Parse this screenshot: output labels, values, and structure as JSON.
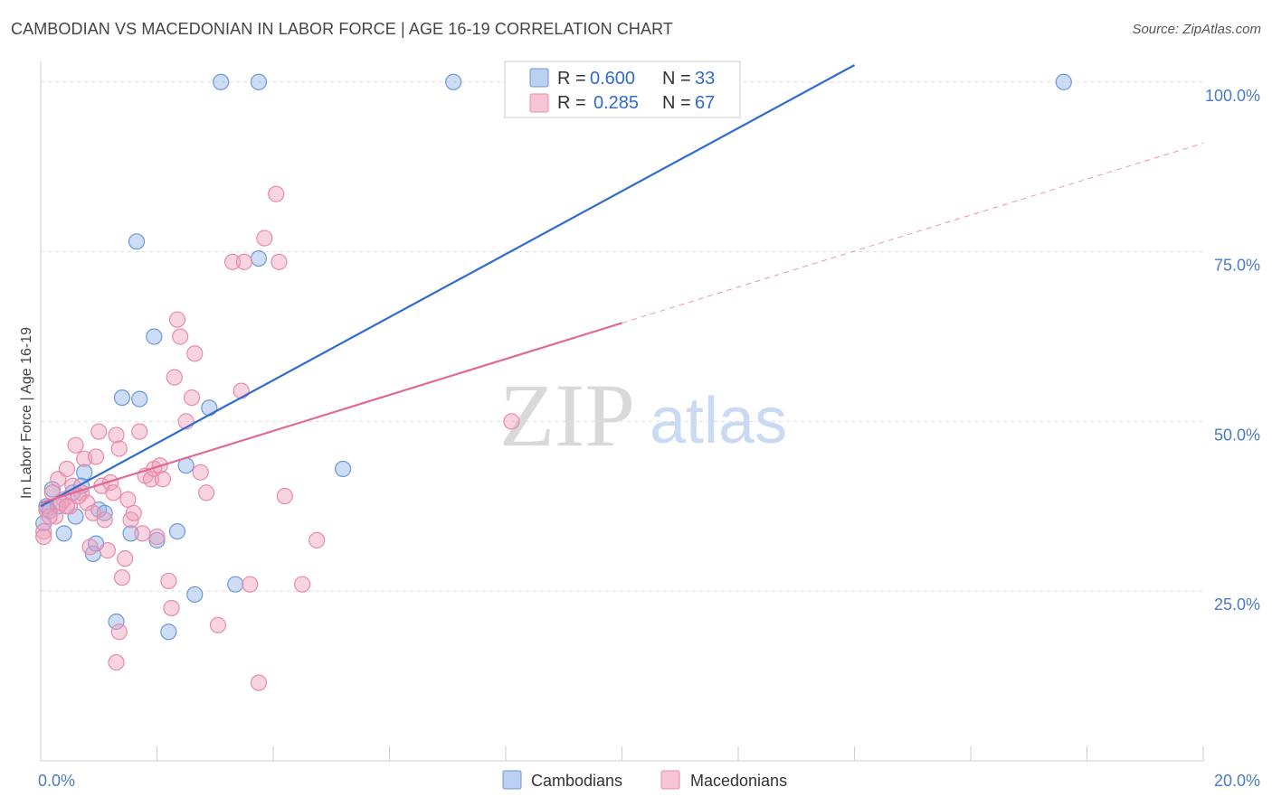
{
  "header": {
    "title": "CAMBODIAN VS MACEDONIAN IN LABOR FORCE | AGE 16-19 CORRELATION CHART",
    "source": "Source: ZipAtlas.com"
  },
  "watermark": {
    "part1": "ZIP",
    "part2": "atlas"
  },
  "legend": {
    "rows": [
      {
        "r_label": "R = ",
        "r_value": "0.600",
        "n_label": "N = ",
        "n_value": "33",
        "color": "#8fb3e8"
      },
      {
        "r_label": "R = ",
        "r_value": "0.285",
        "n_label": "N = ",
        "n_value": "67",
        "color": "#f0a0bb"
      }
    ]
  },
  "bottom_legend": {
    "items": [
      {
        "label": "Cambodians",
        "color": "#8fb3e8"
      },
      {
        "label": "Macedonians",
        "color": "#f0a0bb"
      }
    ]
  },
  "chart_data": {
    "type": "scatter",
    "title": "CAMBODIAN VS MACEDONIAN IN LABOR FORCE | AGE 16-19 CORRELATION CHART",
    "xlabel": "",
    "ylabel": "In Labor Force | Age 16-19",
    "xlim": [
      0,
      20
    ],
    "ylim": [
      0,
      102.5
    ],
    "x_tick_labels": [
      {
        "value": 0,
        "label": "0.0%"
      },
      {
        "value": 20,
        "label": "20.0%"
      }
    ],
    "y_tick_labels": [
      {
        "value": 25,
        "label": "25.0%"
      },
      {
        "value": 50,
        "label": "50.0%"
      },
      {
        "value": 75,
        "label": "75.0%"
      },
      {
        "value": 100,
        "label": "100.0%"
      }
    ],
    "x_minor_ticks": [
      2,
      4,
      6,
      8,
      10,
      12,
      14,
      16,
      18,
      20
    ],
    "legend_position": "top-center",
    "series": [
      {
        "name": "Cambodians",
        "color": "#8fb3e8",
        "stroke": "#6d98d8",
        "trend": {
          "x0": 0,
          "y0": 37.5,
          "x1": 14,
          "y1": 102.5,
          "color": "#2f6bd1",
          "dashed_to": null
        },
        "points": [
          [
            0.05,
            35.0
          ],
          [
            0.1,
            37.5
          ],
          [
            0.15,
            36.8
          ],
          [
            0.3,
            37.5
          ],
          [
            0.4,
            33.5
          ],
          [
            0.55,
            39.5
          ],
          [
            0.6,
            36.0
          ],
          [
            0.75,
            42.5
          ],
          [
            0.7,
            40.5
          ],
          [
            0.9,
            30.5
          ],
          [
            0.95,
            32.0
          ],
          [
            1.0,
            37.0
          ],
          [
            1.1,
            36.5
          ],
          [
            1.3,
            20.5
          ],
          [
            1.4,
            53.5
          ],
          [
            1.55,
            33.5
          ],
          [
            1.65,
            76.5
          ],
          [
            1.7,
            53.3
          ],
          [
            1.95,
            62.5
          ],
          [
            2.0,
            32.5
          ],
          [
            2.35,
            33.8
          ],
          [
            2.5,
            43.5
          ],
          [
            2.65,
            24.5
          ],
          [
            2.9,
            52.0
          ],
          [
            2.2,
            19.0
          ],
          [
            3.1,
            100.0
          ],
          [
            3.75,
            100.0
          ],
          [
            3.35,
            26.0
          ],
          [
            3.75,
            74.0
          ],
          [
            5.2,
            43.0
          ],
          [
            7.1,
            100.0
          ],
          [
            17.6,
            100.0
          ],
          [
            0.2,
            40.0
          ]
        ]
      },
      {
        "name": "Macedonians",
        "color": "#f0a0bb",
        "stroke": "#e88aab",
        "trend": {
          "x0": 0,
          "y0": 38.0,
          "x1": 10.0,
          "y1": 64.5,
          "color": "#e06a94",
          "dashed_to": {
            "x": 20,
            "y": 91.0
          }
        },
        "points": [
          [
            0.05,
            33.8
          ],
          [
            0.1,
            37.0
          ],
          [
            0.2,
            39.5
          ],
          [
            0.25,
            36.0
          ],
          [
            0.3,
            41.5
          ],
          [
            0.4,
            38.5
          ],
          [
            0.45,
            43.0
          ],
          [
            0.5,
            37.5
          ],
          [
            0.55,
            40.5
          ],
          [
            0.6,
            46.5
          ],
          [
            0.7,
            39.5
          ],
          [
            0.75,
            44.5
          ],
          [
            0.8,
            38.0
          ],
          [
            0.85,
            31.5
          ],
          [
            0.9,
            36.5
          ],
          [
            0.95,
            44.8
          ],
          [
            1.0,
            48.5
          ],
          [
            1.05,
            40.5
          ],
          [
            1.1,
            35.5
          ],
          [
            1.15,
            31.0
          ],
          [
            1.2,
            41.0
          ],
          [
            1.25,
            39.5
          ],
          [
            1.3,
            48.0
          ],
          [
            1.35,
            46.0
          ],
          [
            1.4,
            27.0
          ],
          [
            1.45,
            29.8
          ],
          [
            1.5,
            38.5
          ],
          [
            1.55,
            35.5
          ],
          [
            1.6,
            36.5
          ],
          [
            1.7,
            48.5
          ],
          [
            1.75,
            33.5
          ],
          [
            1.8,
            42.0
          ],
          [
            1.9,
            41.5
          ],
          [
            1.95,
            43.0
          ],
          [
            2.0,
            33.0
          ],
          [
            2.05,
            43.5
          ],
          [
            2.1,
            41.5
          ],
          [
            2.2,
            26.5
          ],
          [
            2.25,
            22.5
          ],
          [
            2.3,
            56.5
          ],
          [
            2.35,
            65.0
          ],
          [
            2.4,
            62.5
          ],
          [
            2.5,
            50.0
          ],
          [
            2.6,
            53.5
          ],
          [
            2.65,
            60.0
          ],
          [
            2.75,
            42.5
          ],
          [
            2.85,
            39.5
          ],
          [
            3.05,
            20.0
          ],
          [
            3.3,
            73.5
          ],
          [
            3.45,
            54.5
          ],
          [
            3.5,
            73.5
          ],
          [
            3.6,
            26.0
          ],
          [
            3.75,
            11.5
          ],
          [
            3.85,
            77.0
          ],
          [
            4.1,
            73.5
          ],
          [
            4.2,
            39.0
          ],
          [
            4.05,
            83.5
          ],
          [
            4.5,
            26.0
          ],
          [
            4.75,
            32.5
          ],
          [
            8.1,
            50.0
          ],
          [
            1.3,
            14.5
          ],
          [
            1.35,
            19.0
          ],
          [
            0.15,
            36.0
          ],
          [
            0.35,
            38.0
          ],
          [
            0.45,
            37.5
          ],
          [
            0.65,
            39.0
          ],
          [
            0.05,
            33.0
          ]
        ]
      }
    ]
  }
}
